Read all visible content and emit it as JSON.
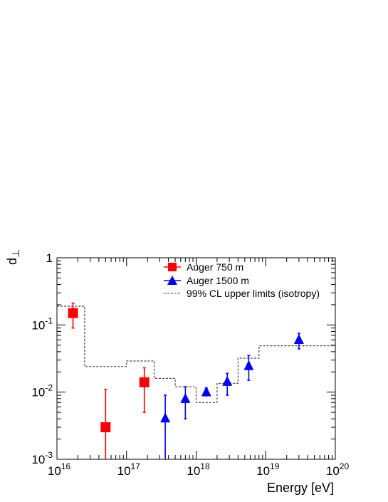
{
  "chart_data": {
    "type": "scatter",
    "xlabel": "Energy [eV]",
    "ylabel": "d",
    "ylabel_subscript": "⊥",
    "xscale": "log",
    "yscale": "log",
    "xlim": [
      1e+16,
      1e+20
    ],
    "ylim": [
      0.001,
      1
    ],
    "x_tick_labels": [
      {
        "base": "10",
        "exp": "16",
        "value": 1e+16
      },
      {
        "base": "10",
        "exp": "17",
        "value": 1e+17
      },
      {
        "base": "10",
        "exp": "18",
        "value": 1e+18
      },
      {
        "base": "10",
        "exp": "19",
        "value": 1e+19
      },
      {
        "base": "10",
        "exp": "20",
        "value": 1e+20
      }
    ],
    "y_tick_labels": [
      {
        "base": "1",
        "exp": "",
        "value": 1
      },
      {
        "base": "10",
        "exp": "-1",
        "value": 0.1
      },
      {
        "base": "10",
        "exp": "-2",
        "value": 0.01
      },
      {
        "base": "10",
        "exp": "-3",
        "value": 0.001
      }
    ],
    "grid": false,
    "legend_position": "top-center",
    "series": [
      {
        "name": "Auger 750 m",
        "marker": "square",
        "color": "#ff0000",
        "points": [
          {
            "x": 1.7e+16,
            "y": 0.15,
            "ylo": 0.09,
            "yhi": 0.21
          },
          {
            "x": 5e+16,
            "y": 0.003,
            "ylo": 0.001,
            "yhi": 0.011
          },
          {
            "x": 1.8e+17,
            "y": 0.014,
            "ylo": 0.005,
            "yhi": 0.023
          }
        ]
      },
      {
        "name": "Auger 1500 m",
        "marker": "triangle",
        "color": "#0000ff",
        "points": [
          {
            "x": 3.6e+17,
            "y": 0.004,
            "ylo": 0.001,
            "yhi": 0.009
          },
          {
            "x": 7e+17,
            "y": 0.0078,
            "ylo": 0.004,
            "yhi": 0.012
          },
          {
            "x": 1.4e+18,
            "y": 0.0098,
            "ylo": 0.0088,
            "yhi": 0.0115
          },
          {
            "x": 2.8e+18,
            "y": 0.014,
            "ylo": 0.009,
            "yhi": 0.019
          },
          {
            "x": 5.7e+18,
            "y": 0.024,
            "ylo": 0.015,
            "yhi": 0.035
          },
          {
            "x": 3e+19,
            "y": 0.059,
            "ylo": 0.044,
            "yhi": 0.075
          }
        ]
      },
      {
        "name": "99% CL upper limits (isotropy)",
        "style": "dashed-step",
        "color": "#444444",
        "steps": [
          {
            "x0": 1e+16,
            "x1": 2.5e+16,
            "y": 0.19
          },
          {
            "x0": 2.5e+16,
            "x1": 1e+17,
            "y": 0.024
          },
          {
            "x0": 1e+17,
            "x1": 2.5e+17,
            "y": 0.029
          },
          {
            "x0": 2.5e+17,
            "x1": 5e+17,
            "y": 0.016
          },
          {
            "x0": 5e+17,
            "x1": 1e+18,
            "y": 0.012
          },
          {
            "x0": 1e+18,
            "x1": 2e+18,
            "y": 0.007
          },
          {
            "x0": 2e+18,
            "x1": 4e+18,
            "y": 0.0135
          },
          {
            "x0": 4e+18,
            "x1": 8e+18,
            "y": 0.032
          },
          {
            "x0": 8e+18,
            "x1": 1e+20,
            "y": 0.049
          }
        ]
      }
    ]
  }
}
